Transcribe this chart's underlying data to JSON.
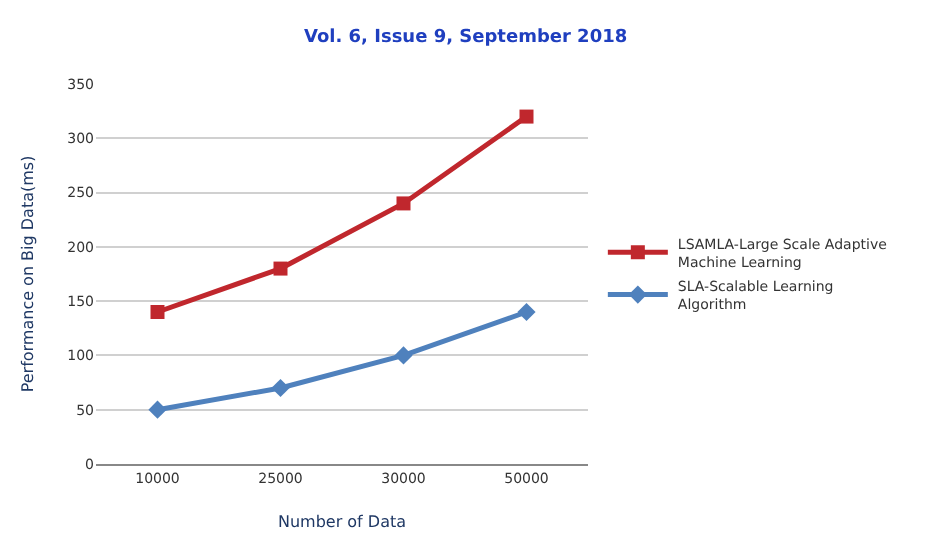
{
  "chart_data": {
    "type": "line",
    "annotations": [
      "Vol. 6, Issue 9, September 2018"
    ],
    "xlabel": "Number of Data",
    "ylabel": "Performance on Big Data(ms)",
    "categories": [
      "10000",
      "25000",
      "30000",
      "50000"
    ],
    "series": [
      {
        "name": "LSAMLA-Large Scale Adaptive Machine Learning",
        "color": "#c0272d",
        "values": [
          140,
          180,
          240,
          320
        ],
        "marker": "square"
      },
      {
        "name": "SLA-Scalable Learning Algorithm",
        "color": "#4f81bd",
        "values": [
          50,
          70,
          100,
          140
        ],
        "marker": "diamond"
      }
    ],
    "ylim": [
      0,
      350
    ],
    "yticks": [
      0,
      50,
      100,
      150,
      200,
      250,
      300,
      350
    ],
    "grid": "y",
    "legend": "right",
    "line_style": "solid"
  }
}
